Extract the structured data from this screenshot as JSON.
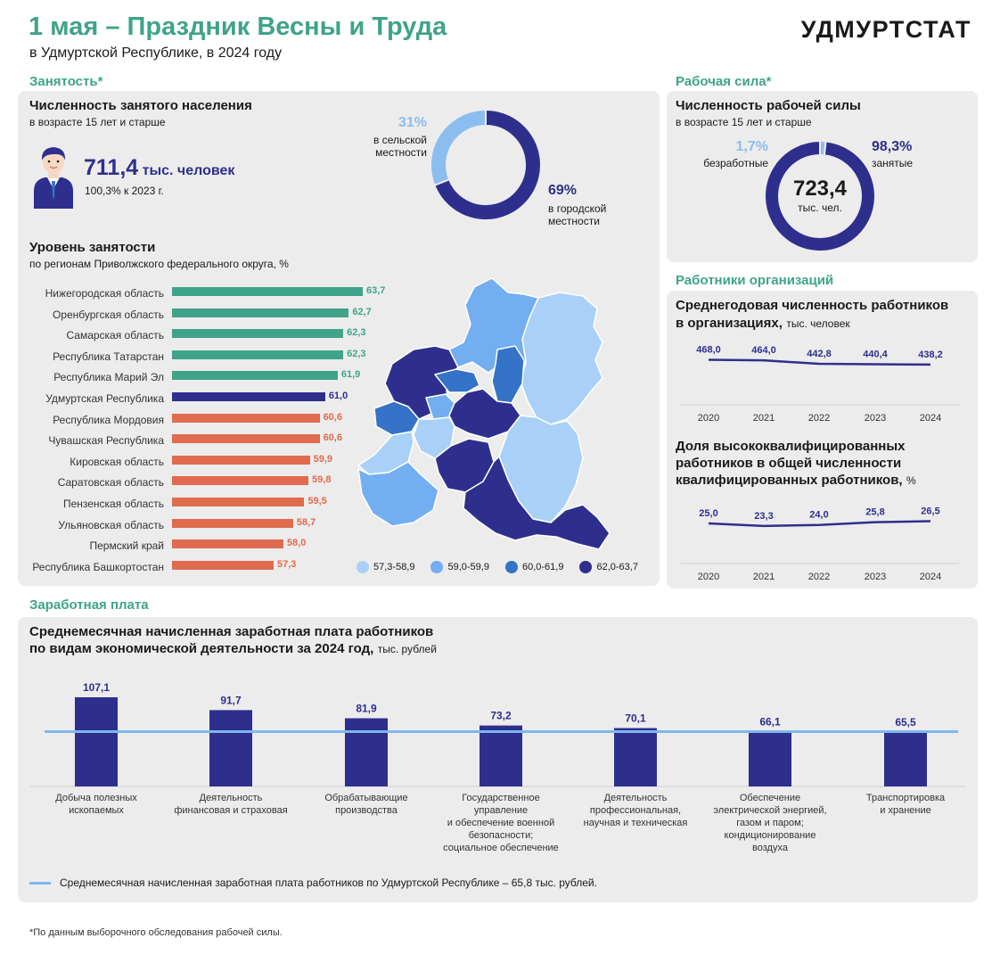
{
  "header": {
    "title": "1 мая – Праздник Весны и Труда",
    "subtitle": "в Удмуртской Республике, в 2024 году",
    "brand": "УДМУРТСТАТ"
  },
  "employment": {
    "section_label": "Занятость*",
    "count_title": "Численность занятого населения",
    "count_subtitle": "в возрасте 15 лет и старше",
    "count_value": "711,4",
    "count_unit": "тыс. человек",
    "count_change": "100,3% к 2023 г.",
    "rural_pct": "31%",
    "rural_label": [
      "в сельской",
      "местности"
    ],
    "urban_pct": "69%",
    "urban_label": [
      "в городской",
      "местности"
    ],
    "level_title": "Уровень занятости",
    "level_subtitle": "по регионам Приволжского федерального округа, %"
  },
  "labor_force": {
    "section_label": "Рабочая сила*",
    "title": "Численность рабочей силы",
    "subtitle": "в возрасте 15 лет и старше",
    "unemployed_pct": "1,7%",
    "unemployed_label": "безработные",
    "employed_pct": "98,3%",
    "employed_label": "занятые",
    "total_value": "723,4",
    "total_unit": "тыс. чел."
  },
  "org_workers": {
    "section_label": "Работники организаций",
    "avg_title_1": "Среднегодовая численность работников",
    "avg_title_2": "в организациях,",
    "avg_unit": "тыс. человек",
    "share_title_1": "Доля высококвалифицированных",
    "share_title_2": "работников в общей численности",
    "share_title_3": "квалифицированных работников,",
    "share_unit": "%"
  },
  "wages": {
    "section_label": "Заработная плата",
    "title_1": "Среднемесячная начисленная заработная плата работников",
    "title_2": "по видам экономической деятельности за 2024 год,",
    "unit": "тыс. рублей",
    "legend": "Среднемесячная начисленная заработная плата работников по Удмуртской Республике – 65,8 тыс. рублей."
  },
  "map_legend": [
    {
      "label": "57,3-58,9",
      "color": "#a9d1f7"
    },
    {
      "label": "59,0-59,9",
      "color": "#72aef0"
    },
    {
      "label": "60,0-61,9",
      "color": "#3473c7"
    },
    {
      "label": "62,0-63,7",
      "color": "#2e2f8d"
    }
  ],
  "footnote": "*По данным выборочного обследования рабочей силы.",
  "colors": {
    "green": "#3fa38a",
    "navy": "#2e2f8d",
    "orange": "#e06b4f",
    "light_blue": "#8cbdf0",
    "avg_line": "#7fb6ee"
  },
  "chart_data": [
    {
      "type": "pie",
      "title": "Численность занятого населения",
      "slices": [
        {
          "label": "в сельской местности",
          "value": 31
        },
        {
          "label": "в городской местности",
          "value": 69
        }
      ]
    },
    {
      "type": "pie",
      "title": "Численность рабочей силы",
      "slices": [
        {
          "label": "безработные",
          "value": 1.7
        },
        {
          "label": "занятые",
          "value": 98.3
        }
      ]
    },
    {
      "type": "bar",
      "orientation": "horizontal",
      "title": "Уровень занятости",
      "categories": [
        "Нижегородская область",
        "Оренбургская область",
        "Самарская область",
        "Республика Татарстан",
        "Республика Марий Эл",
        "Удмуртская Республика",
        "Республика Мордовия",
        "Чувашская Республика",
        "Кировская область",
        "Саратовская область",
        "Пензенская область",
        "Ульяновская область",
        "Пермский край",
        "Республика Башкортостан"
      ],
      "values": [
        63.7,
        62.7,
        62.3,
        62.3,
        61.9,
        61.0,
        60.6,
        60.6,
        59.9,
        59.8,
        59.5,
        58.7,
        58.0,
        57.3
      ],
      "labels": [
        "63,7",
        "62,7",
        "62,3",
        "62,3",
        "61,9",
        "61,0",
        "60,6",
        "60,6",
        "59,9",
        "59,8",
        "59,5",
        "58,7",
        "58,0",
        "57,3"
      ],
      "colors": [
        "green",
        "green",
        "green",
        "green",
        "green",
        "navy",
        "orange",
        "orange",
        "orange",
        "orange",
        "orange",
        "orange",
        "orange",
        "orange"
      ]
    },
    {
      "type": "line",
      "title": "Среднегодовая численность работников в организациях",
      "x": [
        "2020",
        "2021",
        "2022",
        "2023",
        "2024"
      ],
      "values": [
        468.0,
        464.0,
        442.8,
        440.4,
        438.2
      ],
      "labels": [
        "468,0",
        "464,0",
        "442,8",
        "440,4",
        "438,2"
      ],
      "ylim": [
        300,
        520
      ]
    },
    {
      "type": "line",
      "title": "Доля высококвалифицированных работников в общей численности квалифицированных работников",
      "x": [
        "2020",
        "2021",
        "2022",
        "2023",
        "2024"
      ],
      "values": [
        25.0,
        23.3,
        24.0,
        25.8,
        26.5
      ],
      "labels": [
        "25,0",
        "23,3",
        "24,0",
        "25,8",
        "26,5"
      ],
      "ylim": [
        15,
        35
      ]
    },
    {
      "type": "bar",
      "title": "Среднемесячная начисленная заработная плата работников по видам экономической деятельности за 2024 год",
      "categories": [
        [
          "Добыча полезных",
          "ископаемых"
        ],
        [
          "Деятельность",
          "финансовая и страховая"
        ],
        [
          "Обрабатывающие",
          "производства"
        ],
        [
          "Государственное",
          "управление",
          "и обеспечение военной",
          "безопасности;",
          "социальное обеспечение"
        ],
        [
          "Деятельность",
          "профессиональная,",
          "научная и техническая"
        ],
        [
          "Обеспечение",
          "электрической энергией,",
          "газом и паром;",
          "кондиционирование",
          "воздуха"
        ],
        [
          "Транспортировка",
          "и хранение"
        ]
      ],
      "values": [
        107.1,
        91.7,
        81.9,
        73.2,
        70.1,
        66.1,
        65.5
      ],
      "labels": [
        "107,1",
        "91,7",
        "81,9",
        "73,2",
        "70,1",
        "66,1",
        "65,5"
      ],
      "reference_line": 65.8
    }
  ]
}
